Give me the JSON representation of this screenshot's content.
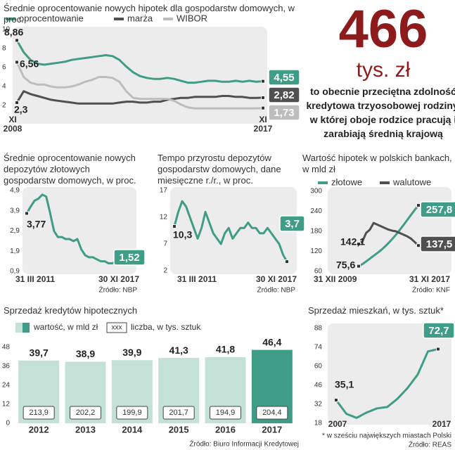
{
  "headline": {
    "number": 466,
    "unit": "tys. zł",
    "text": "to obecnie przeciętna zdolność kredytowa trzyosobowej rodziny, w której oboje rodzice pracują i zarabiają średnią krajową"
  },
  "chart_data": [
    {
      "type": "line",
      "title": "Średnie oprocentowanie nowych hipotek dla gospodarstw domowych, w proc.",
      "categories": [
        "XI 2008",
        null,
        null,
        null,
        null,
        null,
        null,
        null,
        null,
        null,
        null,
        null,
        null,
        null,
        null,
        null,
        null,
        null,
        null,
        null,
        null,
        null,
        null,
        null,
        null,
        null,
        null,
        null,
        null,
        null,
        null,
        null,
        null,
        null,
        null,
        null,
        "XI 2017"
      ],
      "series": [
        {
          "name": "oprocentowanie",
          "color": "#3f9c86",
          "values": [
            8.86,
            7.6,
            6.8,
            6.4,
            6.3,
            6.4,
            6.5,
            6.6,
            6.8,
            6.9,
            7.0,
            7.1,
            7.2,
            7.3,
            7.2,
            6.8,
            6.1,
            5.5,
            5.1,
            4.9,
            4.8,
            4.8,
            4.9,
            4.8,
            4.6,
            4.4,
            4.4,
            4.5,
            4.6,
            4.6,
            4.5,
            4.5,
            4.6,
            4.5,
            4.6,
            4.5,
            4.55
          ],
          "value_labels": [
            "8,86",
            null,
            null,
            null,
            null,
            null,
            null,
            null,
            null,
            null,
            null,
            null,
            null,
            null,
            null,
            null,
            null,
            null,
            null,
            null,
            null,
            null,
            null,
            null,
            null,
            null,
            null,
            null,
            null,
            null,
            null,
            null,
            null,
            null,
            null,
            null,
            "4,55"
          ]
        },
        {
          "name": "marża",
          "color": "#505050",
          "values": [
            2.3,
            3.5,
            3.2,
            3.0,
            2.8,
            2.6,
            2.5,
            2.4,
            2.3,
            2.2,
            2.2,
            2.2,
            2.2,
            2.2,
            2.2,
            2.3,
            2.4,
            2.4,
            2.3,
            2.3,
            2.4,
            2.4,
            2.6,
            2.7,
            2.8,
            2.8,
            2.9,
            2.9,
            2.9,
            2.9,
            3.0,
            3.0,
            2.9,
            2.9,
            2.8,
            2.8,
            2.82
          ],
          "value_labels": [
            "2,3",
            null,
            null,
            null,
            null,
            null,
            null,
            null,
            null,
            null,
            null,
            null,
            null,
            null,
            null,
            null,
            null,
            null,
            null,
            null,
            null,
            null,
            null,
            null,
            null,
            null,
            null,
            null,
            null,
            null,
            null,
            null,
            null,
            null,
            null,
            null,
            "2,82"
          ]
        },
        {
          "name": "WIBOR",
          "color": "#bdbdbd",
          "values": [
            6.56,
            5.0,
            4.4,
            4.2,
            4.2,
            4.0,
            3.9,
            3.9,
            4.0,
            4.2,
            4.5,
            4.7,
            5.0,
            5.0,
            4.9,
            4.5,
            3.5,
            2.8,
            2.7,
            2.7,
            2.7,
            2.7,
            2.7,
            2.5,
            2.1,
            1.8,
            1.7,
            1.7,
            1.7,
            1.7,
            1.7,
            1.7,
            1.7,
            1.7,
            1.7,
            1.7,
            1.73
          ],
          "value_labels": [
            "6,56",
            null,
            null,
            null,
            null,
            null,
            null,
            null,
            null,
            null,
            null,
            null,
            null,
            null,
            null,
            null,
            null,
            null,
            null,
            null,
            null,
            null,
            null,
            null,
            null,
            null,
            null,
            null,
            null,
            null,
            null,
            null,
            null,
            null,
            null,
            null,
            "1,73"
          ]
        }
      ],
      "ylim": [
        0,
        10
      ],
      "yticks": [
        2,
        4,
        6,
        8,
        10
      ]
    },
    {
      "type": "line",
      "title": "Średnie oprocentowanie nowych depozytów złotowych gospodarstw domowych, w proc.",
      "categories": [
        "31 III 2011",
        null,
        null,
        null,
        null,
        null,
        null,
        null,
        null,
        null,
        null,
        null,
        null,
        null,
        null,
        null,
        null,
        null,
        null,
        null,
        null,
        null,
        null,
        null,
        null,
        null,
        "30 XI 2017"
      ],
      "series": [
        {
          "color": "#3f9c86",
          "values": [
            3.77,
            4.1,
            4.4,
            4.5,
            4.7,
            4.6,
            3.8,
            2.9,
            2.6,
            2.6,
            2.5,
            2.5,
            2.4,
            2.5,
            2.0,
            1.7,
            1.6,
            1.6,
            1.5,
            1.4,
            1.4,
            1.3,
            1.3,
            1.4,
            1.4,
            1.5,
            1.52
          ],
          "value_labels": [
            "3,77",
            null,
            null,
            null,
            null,
            null,
            null,
            null,
            null,
            null,
            null,
            null,
            null,
            null,
            null,
            null,
            null,
            null,
            null,
            null,
            null,
            null,
            null,
            null,
            null,
            null,
            "1,52"
          ]
        }
      ],
      "ylim": [
        0.9,
        4.9
      ],
      "yticks": [
        {
          "value": 0.9,
          "label": "0,9"
        },
        {
          "value": 1.9,
          "label": "1,9"
        },
        {
          "value": 2.9,
          "label": "2,9"
        },
        {
          "value": 3.9,
          "label": "3,9"
        },
        {
          "value": 4.9,
          "label": "4,9"
        }
      ],
      "source": "Źródło: NBP"
    },
    {
      "type": "line",
      "title": "Tempo przyrostu depozytów gospodarstw domowych, dane miesięczne r./r., w proc.",
      "categories": [
        "31 III 2011",
        null,
        null,
        null,
        null,
        null,
        null,
        null,
        null,
        null,
        null,
        null,
        null,
        null,
        null,
        null,
        null,
        null,
        null,
        null,
        null,
        null,
        null,
        null,
        null,
        null,
        null,
        null,
        null,
        "30 XI 2017"
      ],
      "series": [
        {
          "color": "#3f9c86",
          "values": [
            10.3,
            13,
            15,
            14,
            12,
            10,
            8,
            10,
            13,
            11,
            9,
            8,
            7,
            9,
            10,
            8,
            9,
            10,
            10,
            11,
            10,
            10,
            9,
            9,
            10,
            9,
            8,
            7,
            5,
            3.7
          ],
          "value_labels": [
            "10,3",
            null,
            null,
            null,
            null,
            null,
            null,
            null,
            null,
            null,
            null,
            null,
            null,
            null,
            null,
            null,
            null,
            null,
            null,
            null,
            null,
            null,
            null,
            null,
            null,
            null,
            null,
            null,
            null,
            "3,7"
          ]
        }
      ],
      "ylim": [
        2,
        17
      ],
      "yticks": [
        2,
        7,
        12,
        17
      ],
      "source": "Źródło: NBP"
    },
    {
      "type": "line",
      "title": "Wartość hipotek w polskich bankach, w mld zł",
      "categories": [
        "31 XII 2009",
        null,
        null,
        null,
        null,
        null,
        null,
        null,
        null,
        null,
        null,
        null,
        null,
        null,
        null,
        null,
        "31 XI 2017"
      ],
      "series": [
        {
          "name": "złotowe",
          "color": "#3f9c86",
          "values": [
            75.6,
            82,
            90,
            98,
            107,
            115,
            124,
            134,
            145,
            157,
            170,
            184,
            199,
            214,
            229,
            244,
            257.8
          ],
          "value_labels": [
            "75,6",
            null,
            null,
            null,
            null,
            null,
            null,
            null,
            null,
            null,
            null,
            null,
            null,
            null,
            null,
            null,
            "257,8"
          ]
        },
        {
          "name": "walutowe",
          "color": "#505050",
          "values": [
            142.1,
            150,
            175,
            185,
            205,
            200,
            195,
            190,
            185,
            182,
            180,
            175,
            170,
            165,
            158,
            148,
            137.5
          ],
          "value_labels": [
            "142,1",
            null,
            null,
            null,
            null,
            null,
            null,
            null,
            null,
            null,
            null,
            null,
            null,
            null,
            null,
            null,
            "137,5"
          ]
        }
      ],
      "ylim": [
        60,
        300
      ],
      "yticks": [
        60,
        120,
        180,
        240,
        300
      ],
      "source": "Źródło: KNF"
    },
    {
      "type": "bar",
      "title": "Sprzedaż kredytów hipotecznych",
      "categories": [
        "2012",
        "2013",
        "2014",
        "2015",
        "2016",
        "2017"
      ],
      "series": [
        {
          "name": "wartość, w mld zł",
          "colors": [
            "#c4e1d7",
            "#c4e1d7",
            "#c4e1d7",
            "#c4e1d7",
            "#c4e1d7",
            "#3f9c86"
          ],
          "values": [
            39.7,
            38.9,
            39.9,
            41.3,
            41.8,
            46.4
          ],
          "value_labels": [
            "39,7",
            "38,9",
            "39,9",
            "41,3",
            "41,8",
            "46,4"
          ]
        },
        {
          "name": "liczba, w tys. sztuk",
          "legend_sample": "xxx",
          "values": [
            213.9,
            202.2,
            199.9,
            201.7,
            194.9,
            204.4
          ],
          "value_labels": [
            "213,9",
            "202,2",
            "199,9",
            "201,7",
            "194,9",
            "204,4"
          ]
        }
      ],
      "ylim": [
        0,
        48
      ],
      "yticks": [
        0,
        12,
        24,
        36,
        48
      ],
      "source": "Źródło: Biuro Informacji Kredytowej"
    },
    {
      "type": "line",
      "title": "Sprzedaż mieszkań, w tys. sztuk*",
      "categories": [
        "2007",
        null,
        null,
        null,
        null,
        null,
        null,
        null,
        null,
        null,
        "2017"
      ],
      "series": [
        {
          "color": "#3f9c86",
          "values": [
            35.1,
            25,
            22,
            26,
            29,
            30,
            36,
            44,
            54,
            71,
            72.7
          ],
          "value_labels": [
            "35,1",
            null,
            null,
            null,
            null,
            null,
            null,
            null,
            null,
            null,
            "72,7"
          ]
        }
      ],
      "ylim": [
        18,
        88
      ],
      "yticks": [
        18,
        32,
        46,
        60,
        74,
        88
      ],
      "footnote": "* w sześciu największych miastach Polski",
      "source": "Źródło: REAS"
    }
  ]
}
